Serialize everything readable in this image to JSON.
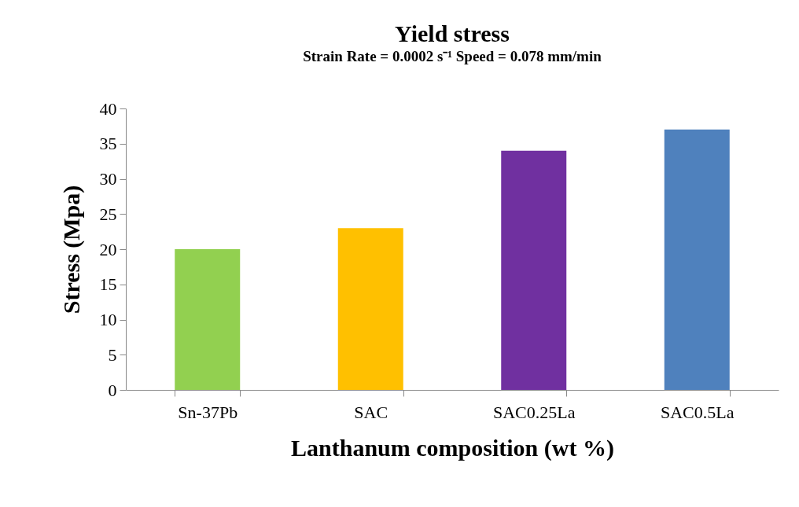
{
  "chart_data": {
    "type": "bar",
    "title": "Yield stress",
    "subtitle": "Strain Rate = 0.0002 s⁻¹    Speed = 0.078 mm/min",
    "xlabel": "Lanthanum composition (wt %)",
    "ylabel": "Stress (Mpa)",
    "categories": [
      "Sn-37Pb",
      "SAC",
      "SAC0.25La",
      "SAC0.5La"
    ],
    "values": [
      20,
      23,
      34,
      37
    ],
    "colors": [
      "#92d050",
      "#ffc000",
      "#7030a0",
      "#4f81bd"
    ],
    "ylim": [
      0,
      40
    ],
    "yticks": [
      0,
      5,
      10,
      15,
      20,
      25,
      30,
      35,
      40
    ]
  }
}
